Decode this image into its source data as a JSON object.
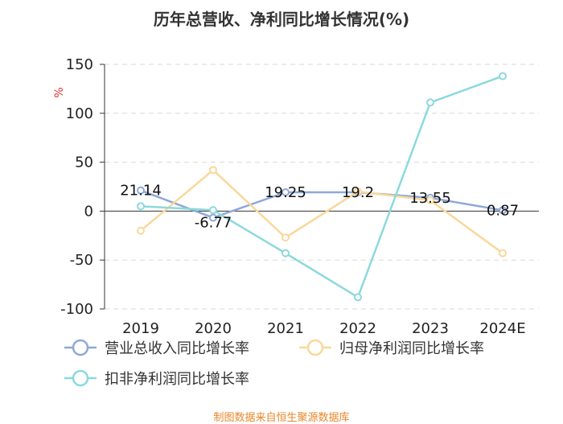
{
  "chart_data": {
    "type": "line",
    "title": "历年总营收、净利同比增长情况(%)",
    "ylabel": "%",
    "categories": [
      "2019",
      "2020",
      "2021",
      "2022",
      "2023",
      "2024E"
    ],
    "ylim": [
      -100,
      150
    ],
    "yticks": [
      150,
      100,
      50,
      0,
      -50,
      -100
    ],
    "grid": true,
    "legend_position": "bottom",
    "series": [
      {
        "name": "营业总收入同比增长率",
        "color": "#8fa8d8",
        "values": [
          21.14,
          -6.77,
          19.25,
          19.2,
          13.55,
          0.87
        ],
        "labels": [
          "21.14",
          "-6.77",
          "19.25",
          "19.2",
          "13.55",
          "0.87"
        ]
      },
      {
        "name": "归母净利润同比增长率",
        "color": "#f9d89a",
        "values": [
          -20,
          42,
          -27,
          20,
          11,
          -43
        ]
      },
      {
        "name": "扣非净利润同比增长率",
        "color": "#8dd9dc",
        "values": [
          5,
          1,
          -43,
          -88,
          111,
          138
        ]
      }
    ]
  },
  "source_note": "制图数据来自恒生聚源数据库"
}
